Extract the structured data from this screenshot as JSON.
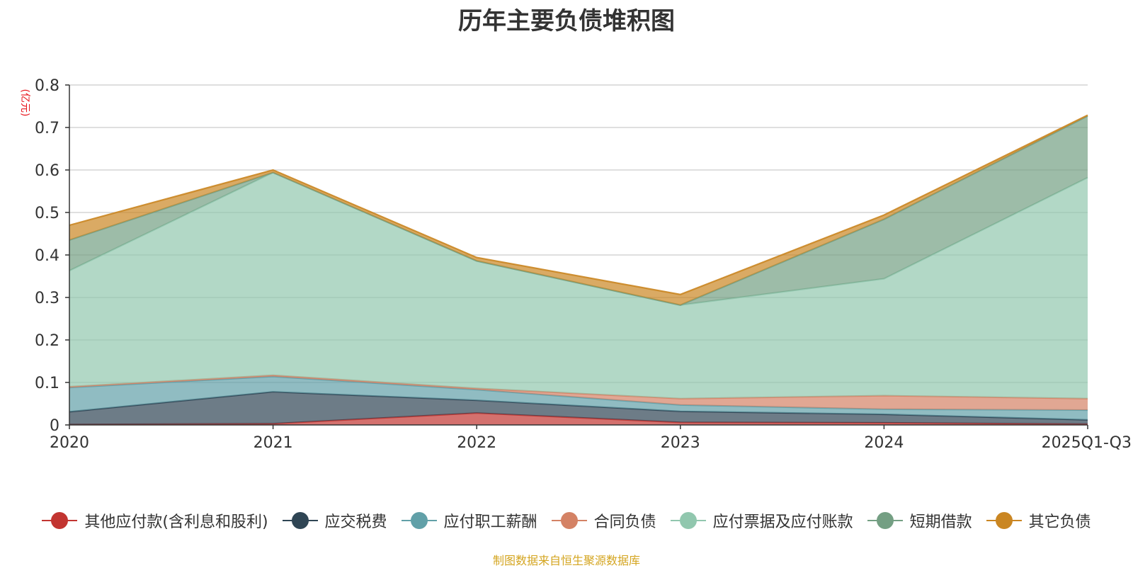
{
  "chart_data": {
    "type": "area",
    "stacked": true,
    "title": "历年主要负债堆积图",
    "ylabel": "(亿元)",
    "xlabel": "",
    "categories": [
      "2020",
      "2021",
      "2022",
      "2023",
      "2024",
      "2025Q1-Q3"
    ],
    "ylim": [
      0,
      0.8
    ],
    "yticks": [
      0,
      0.1,
      0.2,
      0.3,
      0.4,
      0.5,
      0.6,
      0.7,
      0.8
    ],
    "ytick_labels": [
      "0",
      "0.1",
      "0.2",
      "0.3",
      "0.4",
      "0.5",
      "0.6",
      "0.7",
      "0.8"
    ],
    "grid": true,
    "legend_position": "bottom",
    "series": [
      {
        "name": "其他应付款(含利息和股利)",
        "color": "#c23531",
        "values": [
          0.001,
          0.003,
          0.028,
          0.006,
          0.005,
          0.002
        ]
      },
      {
        "name": "应交税费",
        "color": "#2f4554",
        "values": [
          0.03,
          0.075,
          0.03,
          0.026,
          0.02,
          0.01
        ]
      },
      {
        "name": "应付职工薪酬",
        "color": "#61a0a8",
        "values": [
          0.057,
          0.036,
          0.025,
          0.015,
          0.012,
          0.023
        ]
      },
      {
        "name": "合同负债",
        "color": "#d48265",
        "values": [
          0.002,
          0.003,
          0.003,
          0.015,
          0.032,
          0.027
        ]
      },
      {
        "name": "应付票据及应付账款",
        "color": "#91c7ae",
        "values": [
          0.273,
          0.477,
          0.3,
          0.22,
          0.275,
          0.52
        ]
      },
      {
        "name": "短期借款",
        "color": "#749f83",
        "values": [
          0.072,
          0.0,
          0.0,
          0.0,
          0.14,
          0.145
        ]
      },
      {
        "name": "其它负债",
        "color": "#ca8622",
        "values": [
          0.035,
          0.006,
          0.008,
          0.025,
          0.01,
          0.002
        ]
      }
    ]
  },
  "source_note": "制图数据来自恒生聚源数据库"
}
